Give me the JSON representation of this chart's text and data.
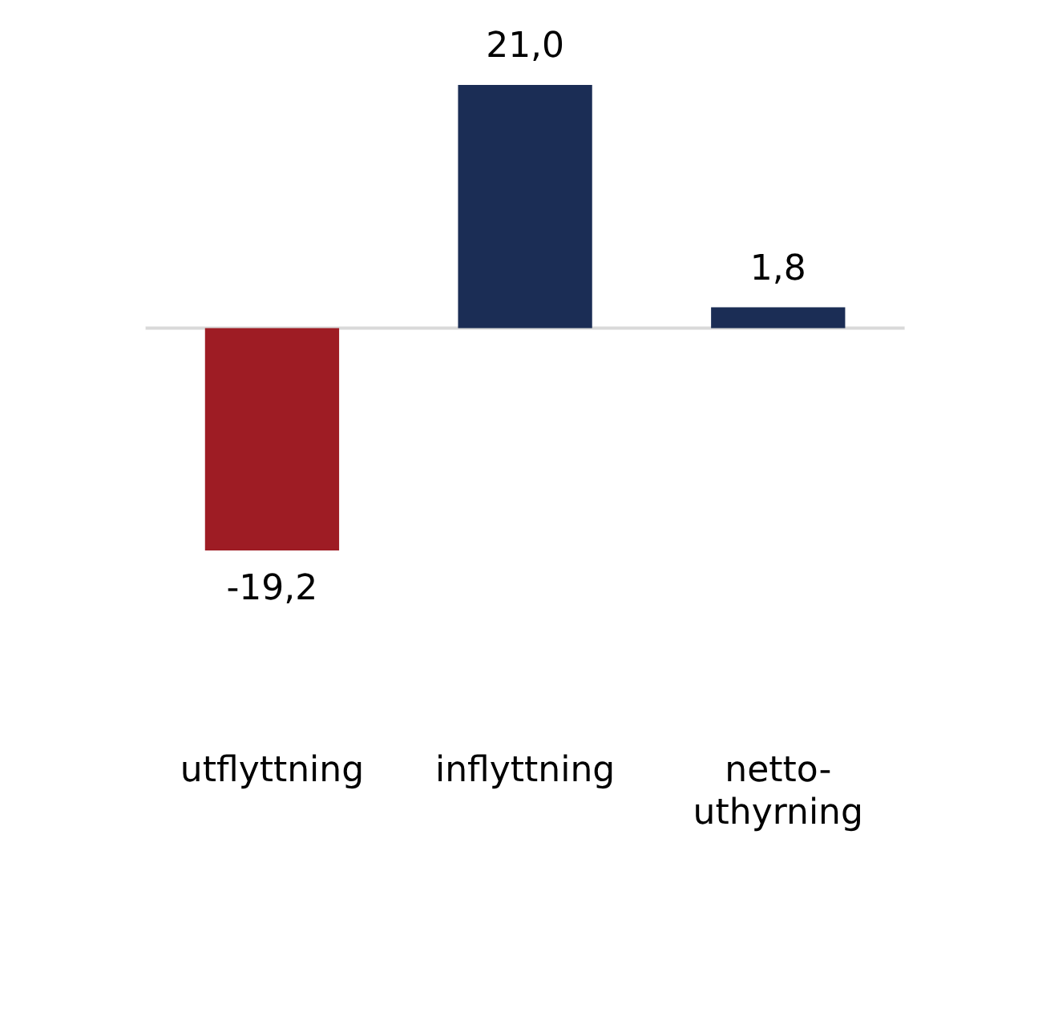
{
  "chart_data": {
    "type": "bar",
    "categories": [
      "utflyttning",
      "inflyttning",
      "netto-uthyrning"
    ],
    "values": [
      -19.2,
      21.0,
      1.8
    ],
    "colors": [
      "#9e1c24",
      "#1b2d55",
      "#1b2d55"
    ],
    "value_labels": [
      "-19,2",
      "21,0",
      "1,8"
    ],
    "grid": false,
    "legend": false
  }
}
